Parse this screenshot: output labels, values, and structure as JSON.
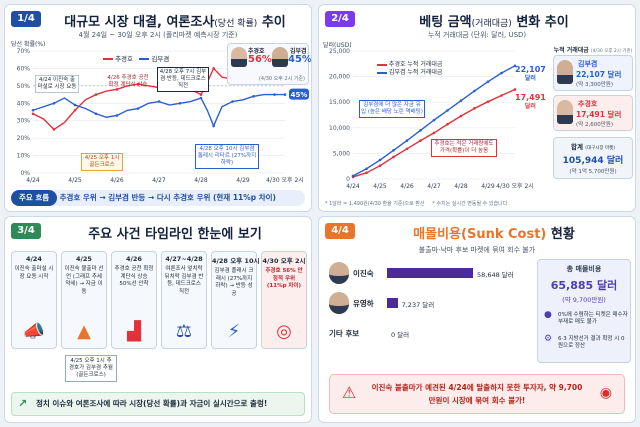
{
  "panel1": {
    "badge": "1/4",
    "title": "대규모 시장 대결, 여론조사",
    "title_paren": "(당선 확률)",
    "title_tail": "추이",
    "subtitle": "4월 24일 ~ 30일 오후 2시 (폴리마켓 예측시장 기준)",
    "y_axis_label": "당선 확률(%)",
    "legend": [
      "추경호",
      "김부겸"
    ],
    "candidate_cards": [
      {
        "name": "추경호",
        "value": "56%"
      },
      {
        "name": "김부겸",
        "value": "45%"
      }
    ],
    "card_note": "(4/30 오후 2시 기준)",
    "end_labels": [
      "56%",
      "45%"
    ],
    "annotations": [
      "4/24 이진숙 출마설로 시장 요동",
      "4/26 추경호 공천 확정 계단식 상승",
      "4/28 오후 7시 김부겸 반등, 데드크로스 직전",
      "4/25 오후 1시 골든크로스",
      "4/28 오후 10시 김부겸 톱레시 리타르 (27%까지 하락)"
    ],
    "footer_label": "주요 흐름",
    "footer_text": "추경호 우위 → 김부겸 반등 → 다시 추경호 우위 (현재 11%p 차이)"
  },
  "panel2": {
    "badge": "2/4",
    "title": "베팅 금액",
    "title_paren": "(거래대금)",
    "title_tail": "변화 추이",
    "subtitle": "누적 거래대금 (단위: 달러, USD)",
    "y_axis_label": "달러(USD)",
    "legend": [
      "추경호 누적 거래대금",
      "김부겸 누적 거래대금"
    ],
    "end_labels": [
      {
        "value": "22,107",
        "unit": "달러"
      },
      {
        "value": "17,491",
        "unit": "달러"
      }
    ],
    "annotations": [
      "김부겸에 더 많은 자금 유입 (높은 배당 노린 역배팅)",
      "추경호는 적은 거래량에도 가격(확률)이 더 높음"
    ],
    "footnote": "* 1달러 = 1,490원(4/30 환율 기준)으로 환산     * 수치는 실시간 변동될 수 있습니다.",
    "side_title": "누적 거래대금",
    "side_title_note": "(4/30 오후 2시 기준)",
    "side_cards": [
      {
        "name": "김부겸",
        "value": "22,107 달러",
        "krw": "(약 3,300만원)"
      },
      {
        "name": "추경호",
        "value": "17,491 달러",
        "krw": "(약 2,600만원)"
      }
    ],
    "total_label": "합계",
    "total_note": "(대구시장 마켓)",
    "total_value": "105,944 달러",
    "total_krw": "(약 1억 5,700만원)"
  },
  "panel3": {
    "badge": "3/4",
    "title": "주요 사건 타임라인 한눈에 보기",
    "events": [
      {
        "date": "4/24",
        "text": "이진숙 출마설 시장 요동 시작",
        "icon": "megaphone-icon"
      },
      {
        "date": "4/25",
        "text": "이진숙 불출마 선언 (그래프 추세 약세) → 자금 이동",
        "icon": "chart-up-icon"
      },
      {
        "date": "4/26",
        "text": "추경호 공천 확정 계단식 상승 50%선 안착",
        "icon": "stairs-icon"
      },
      {
        "date": "4/27~4/28",
        "text": "여론조사 엎치락뒤치락 김부겸 반등, 데드크로스 직전",
        "icon": "scales-icon"
      },
      {
        "date": "4/28 오후 10시",
        "text": "김부겸 플래시 크래시 (27%까지 하락) → 반등 성공",
        "icon": "lightning-icon"
      },
      {
        "date": "4/30 오후 2시",
        "text": "추경호 56% 안정적 우위 (11%p 차이)",
        "icon": "target-icon"
      }
    ],
    "popup": "4/25 오후 1시 추경호가 김부겸 추월 (골든크로스)",
    "footer_text": "정치 이슈와 여론조사에 따라 시장(당선 확률)과 자금이 실시간으로 출렁!"
  },
  "panel4": {
    "badge": "4/4",
    "title_accent": "매몰비용(Sunk Cost)",
    "title_tail": "현황",
    "subtitle": "불출마·낙마 후보 마켓에 묶여 회수 불가",
    "rows": [
      {
        "name": "이진숙",
        "value": 58648,
        "label": "58,648 달러"
      },
      {
        "name": "유영하",
        "value": 7237,
        "label": "7,237 달러"
      },
      {
        "name": "기타 후보",
        "value": 0,
        "label": "0 달러"
      }
    ],
    "total_title": "총 매몰비용",
    "total_value": "65,885 달러",
    "total_krw": "(약 9,700만원)",
    "notes": [
      "0%에 수렴하는 티켓은 매수자 부재로 매도 불가",
      "6·3 지방선거 결과 확정 시 0원으로 정산"
    ],
    "warning": "이진숙 불출마가 예견된 4/24에 탈출하지 못한 투자자, 약 9,700만원이 시장에 묶여 회수 불가!"
  },
  "chart_data": [
    {
      "type": "line",
      "title": "대규모 시장 대결, 여론조사(당선 확률) 추이",
      "ylabel": "당선 확률(%)",
      "categories": [
        "4/24",
        "4/25",
        "4/26",
        "4/27",
        "4/28",
        "4/29",
        "4/30 오후 2시"
      ],
      "ylim": [
        0,
        70
      ],
      "y_ticks": [
        0,
        10,
        20,
        30,
        40,
        50,
        60,
        70
      ],
      "grid": true,
      "x": [
        0,
        0.25,
        0.5,
        0.75,
        1,
        1.25,
        1.5,
        1.75,
        2,
        2.25,
        2.5,
        2.75,
        3,
        3.25,
        3.5,
        3.75,
        4,
        4.15,
        4.3,
        4.5,
        4.75,
        5,
        5.25,
        5.5,
        5.75,
        6
      ],
      "series": [
        {
          "name": "추경호",
          "color": "#e0323a",
          "values": [
            34,
            31,
            25,
            29,
            36,
            42,
            45,
            47,
            48,
            50,
            51,
            50,
            49,
            51,
            50,
            48,
            45,
            52,
            60,
            55,
            54,
            55,
            55,
            55,
            56,
            56
          ]
        },
        {
          "name": "김부겸",
          "color": "#2a5fd1",
          "values": [
            36,
            38,
            40,
            43,
            39,
            37,
            34,
            32,
            33,
            36,
            37,
            40,
            41,
            39,
            40,
            41,
            43,
            36,
            27,
            38,
            41,
            42,
            44,
            45,
            45,
            45
          ]
        }
      ]
    },
    {
      "type": "line",
      "title": "베팅 금액(거래대금) 변화 추이",
      "ylabel": "달러(USD)",
      "categories": [
        "4/24",
        "4/25",
        "4/26",
        "4/27",
        "4/28",
        "4/29",
        "4/30 오후 2시"
      ],
      "ylim": [
        0,
        25000
      ],
      "y_ticks": [
        0,
        5000,
        10000,
        15000,
        20000,
        25000
      ],
      "grid": true,
      "x": [
        0,
        0.5,
        1,
        1.5,
        2,
        2.5,
        3,
        3.5,
        4,
        4.5,
        5,
        5.5,
        6
      ],
      "series": [
        {
          "name": "추경호 누적 거래대금",
          "color": "#e0323a",
          "values": [
            400,
            1200,
            2600,
            4300,
            5900,
            7500,
            9000,
            10700,
            12300,
            13800,
            15100,
            16300,
            17491
          ]
        },
        {
          "name": "김부겸 누적 거래대금",
          "color": "#2a5fd1",
          "values": [
            600,
            2000,
            3700,
            5600,
            7500,
            9500,
            11500,
            13400,
            15300,
            17200,
            19000,
            20700,
            22107
          ]
        }
      ]
    }
  ]
}
